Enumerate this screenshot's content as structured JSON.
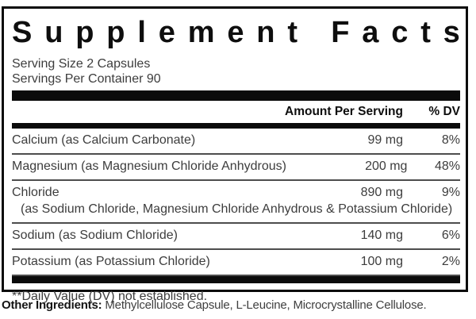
{
  "panel": {
    "title": "Supplement Facts",
    "serving_size": "Serving Size 2 Capsules",
    "servings_per_container": "Servings Per Container 90",
    "header": {
      "amount": "Amount Per Serving",
      "dv": "% DV"
    },
    "rows": [
      {
        "name": "Calcium (as Calcium Carbonate)",
        "amount": "99 mg",
        "dv": "8%"
      },
      {
        "name": "Magnesium (as Magnesium Chloride Anhydrous)",
        "amount": "200 mg",
        "dv": "48%"
      },
      {
        "name": "Chloride",
        "sub": "(as Sodium Chloride, Magnesium Chloride Anhydrous & Potassium Chloride)",
        "amount": "890 mg",
        "dv": "9%"
      },
      {
        "name": "Sodium (as Sodium Chloride)",
        "amount": "140 mg",
        "dv": "6%"
      },
      {
        "name": "Potassium (as Potassium Chloride)",
        "amount": "100 mg",
        "dv": "2%"
      }
    ],
    "footnote": "**Daily Value (DV) not established.",
    "other_ingredients_label": "Other Ingredients:",
    "other_ingredients": " Methylcellulose Capsule, L-Leucine, Microcrystalline Cellulose."
  },
  "colors": {
    "background": "#ffffff",
    "heading_text": "#0e0e0e",
    "body_text": "#3d3d3d",
    "divider_bar": "#0b0b0b",
    "thin_rule": "#4d4d4d"
  }
}
